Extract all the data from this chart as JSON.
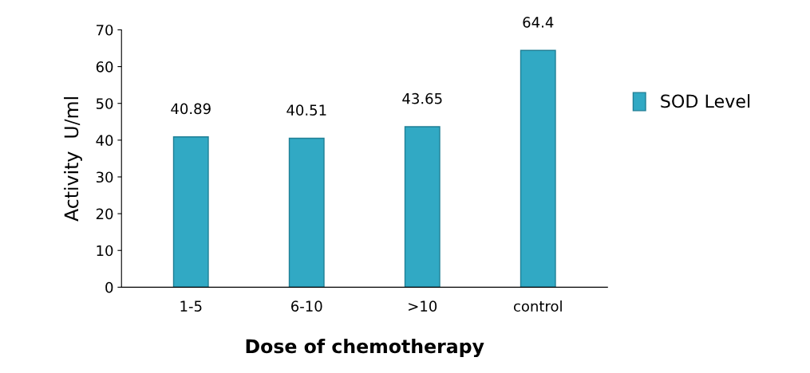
{
  "chart_data": {
    "type": "bar",
    "xlabel": "Dose of chemotherapy",
    "ylabel": "Activity  U/ml",
    "categories": [
      "1-5",
      "6-10",
      ">10",
      "control"
    ],
    "series": [
      {
        "name": "SOD Level",
        "color": "#31a9c4",
        "values": [
          40.89,
          40.51,
          43.65,
          64.4
        ]
      }
    ],
    "ylim": [
      0,
      70
    ],
    "yticks": [
      0,
      10,
      20,
      30,
      40,
      50,
      60,
      70
    ],
    "data_labels": true,
    "grid": false,
    "legend": "right"
  }
}
